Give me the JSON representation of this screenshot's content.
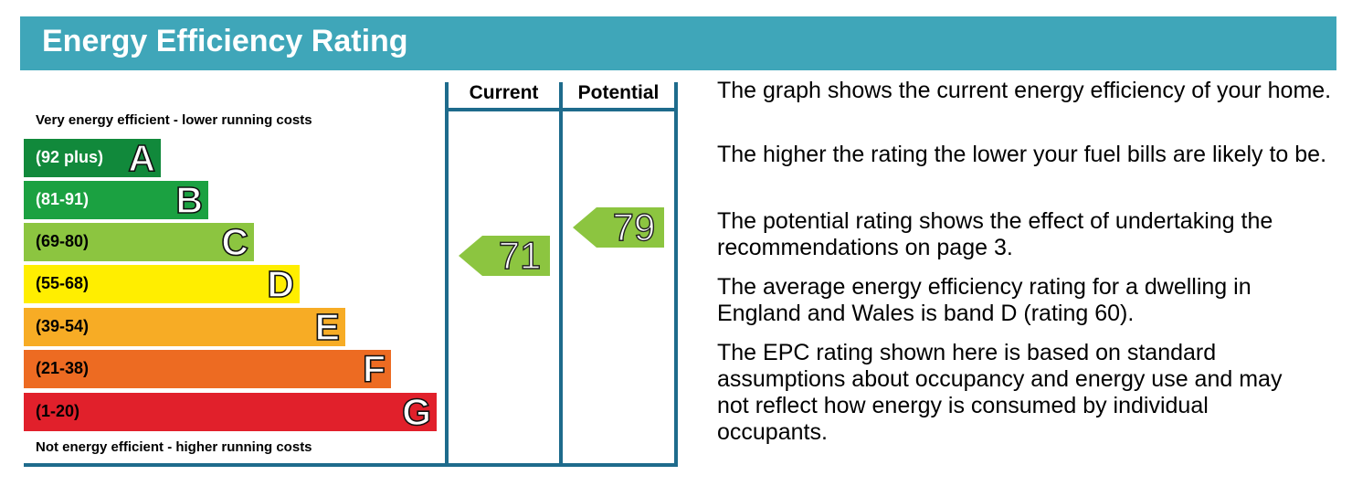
{
  "header": {
    "title": "Energy Efficiency Rating",
    "color": "#3fa6b9"
  },
  "scale": {
    "top_caption": "Very energy efficient - lower running costs",
    "bottom_caption": "Not energy efficient - higher running costs",
    "bands": [
      {
        "range": "(92 plus)",
        "letter": "A",
        "color": "#11893b",
        "text_color": "#ffffff"
      },
      {
        "range": "(81-91)",
        "letter": "B",
        "color": "#1ba141",
        "text_color": "#ffffff"
      },
      {
        "range": "(69-80)",
        "letter": "C",
        "color": "#8cc540",
        "text_color": "#000000"
      },
      {
        "range": "(55-68)",
        "letter": "D",
        "color": "#ffee00",
        "text_color": "#000000"
      },
      {
        "range": "(39-54)",
        "letter": "E",
        "color": "#f7ac25",
        "text_color": "#000000"
      },
      {
        "range": "(21-38)",
        "letter": "F",
        "color": "#ed6b22",
        "text_color": "#000000"
      },
      {
        "range": "(1-20)",
        "letter": "G",
        "color": "#e1202b",
        "text_color": "#000000"
      }
    ]
  },
  "columns": {
    "current_label": "Current",
    "potential_label": "Potential"
  },
  "ratings": {
    "current": {
      "value": "71",
      "band": "C",
      "color": "#8cc540"
    },
    "potential": {
      "value": "79",
      "band": "C",
      "color": "#8cc540"
    }
  },
  "description": [
    "The graph shows the current energy efficiency of your home.",
    "The higher the rating the lower your fuel bills are likely to be.",
    "The potential rating shows the effect of undertaking the recommendations on page 3.",
    "The average energy efficiency rating for a dwelling in England and Wales is band D (rating 60).",
    "The EPC rating shown here is based on standard assumptions about occupancy and energy use and may not reflect how energy is consumed by individual occupants."
  ]
}
